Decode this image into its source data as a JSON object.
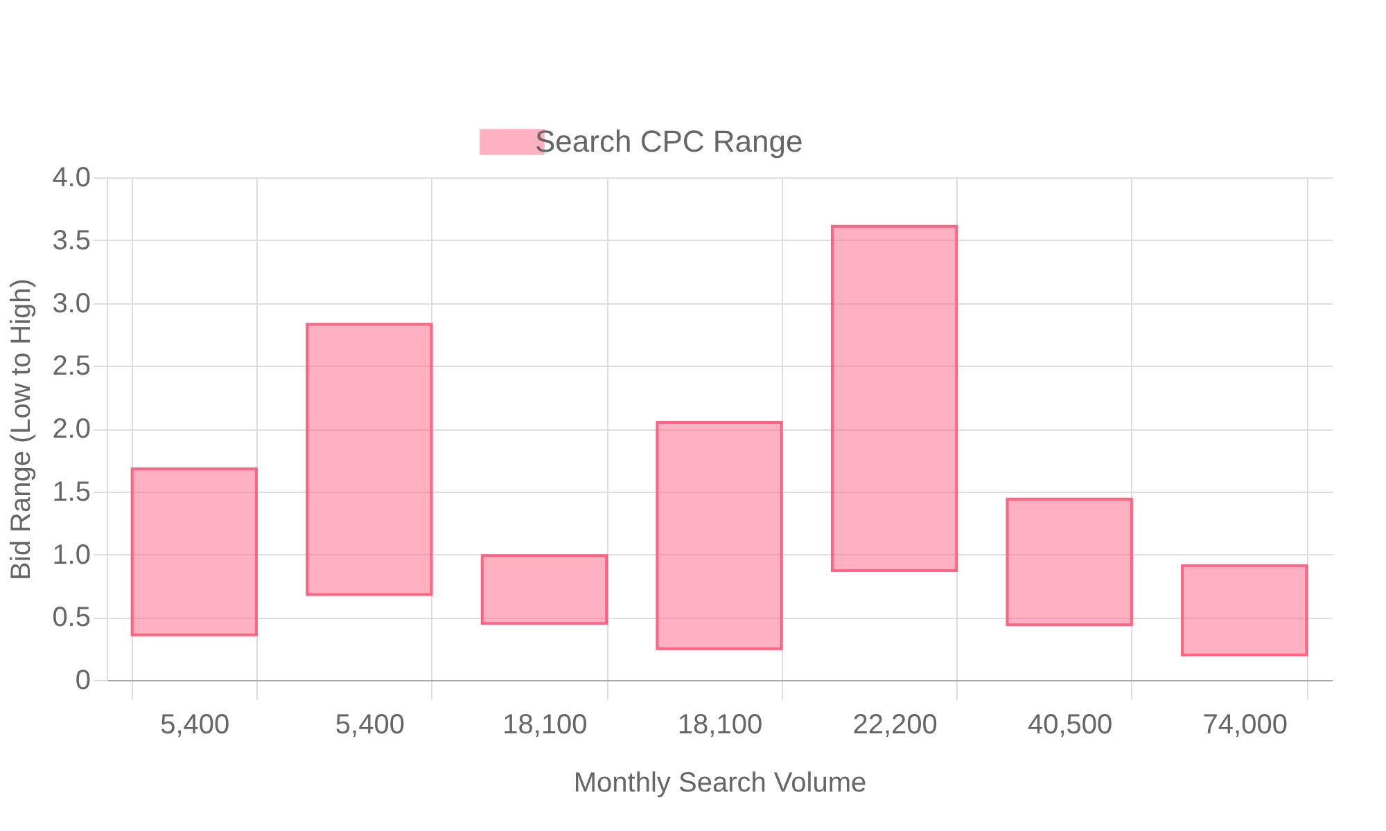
{
  "chart_data": {
    "type": "bar",
    "xlabel": "Monthly Search Volume",
    "ylabel": "Bid Range (Low to High)",
    "categories": [
      "5,400",
      "5,400",
      "18,100",
      "18,100",
      "22,200",
      "40,500",
      "74,000"
    ],
    "series": [
      {
        "name": "Search CPC Range",
        "color": "#ff6384",
        "values": [
          1.32,
          2.15,
          0.54,
          1.8,
          2.74,
          1.0,
          0.71
        ],
        "base": [
          0.36,
          0.68,
          0.45,
          0.25,
          0.87,
          0.44,
          0.2
        ]
      }
    ],
    "ylim": [
      0,
      4
    ],
    "yticks": [
      0,
      {
        "value": 0.5,
        "label": "0.5"
      },
      {
        "value": 1,
        "label": "1.0"
      },
      {
        "value": 1.5,
        "label": "1.5"
      },
      {
        "value": 2,
        "label": "2.0"
      },
      {
        "value": 2.5,
        "label": "2.5"
      },
      {
        "value": 3,
        "label": "3.0"
      },
      {
        "value": 3.5,
        "label": "3.5"
      },
      {
        "value": 4,
        "label": "4.0"
      }
    ],
    "grid": true,
    "legend": "top"
  }
}
